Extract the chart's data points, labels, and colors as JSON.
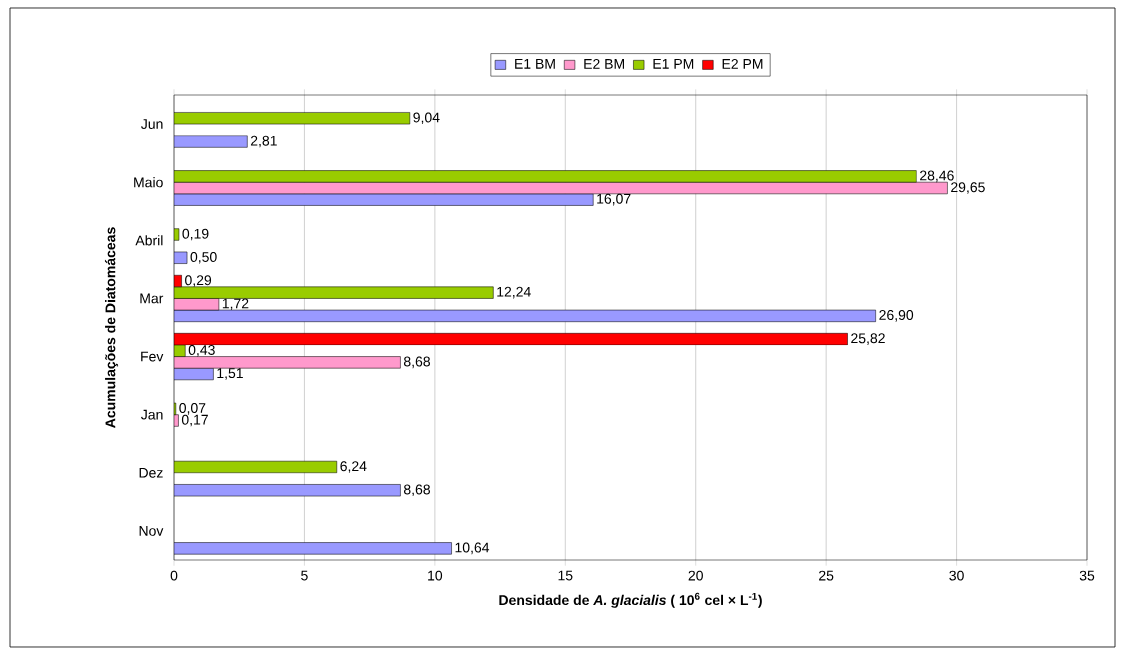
{
  "chart_data": {
    "type": "bar",
    "orientation": "horizontal",
    "xlabel": "Densidade de *A. glacialis*  ( 10$^{6}$ cel × L$^{-1}$)",
    "ylabel": "Acumulações de Diatomáceas",
    "categories": [
      "Jun",
      "Maio",
      "Abril",
      "Mar",
      "Fev",
      "Jan",
      "Dez",
      "Nov"
    ],
    "series": [
      {
        "name": "E1 BM",
        "color": "#9999ff",
        "values": [
          2.81,
          16.07,
          0.5,
          26.9,
          1.51,
          null,
          8.68,
          10.64
        ],
        "value_labels": [
          "2,81",
          "16,07",
          "0,50",
          "26,90",
          "1,51",
          null,
          "8,68",
          "10,64"
        ]
      },
      {
        "name": "E2 BM",
        "color": "#ff99cc",
        "values": [
          null,
          29.65,
          null,
          1.72,
          8.68,
          0.17,
          null,
          null
        ],
        "value_labels": [
          null,
          "29,65",
          null,
          "1,72",
          "8,68",
          "0,17",
          null,
          null
        ]
      },
      {
        "name": "E1 PM",
        "color": "#99cc00",
        "values": [
          9.04,
          28.46,
          0.19,
          12.24,
          0.43,
          0.07,
          6.24,
          null
        ],
        "value_labels": [
          "9,04",
          "28,46",
          "0,19",
          "12,24",
          "0,43",
          "0,07",
          "6,24",
          null
        ]
      },
      {
        "name": "E2 PM",
        "color": "#ff0000",
        "values": [
          null,
          null,
          null,
          0.29,
          25.82,
          null,
          null,
          null
        ],
        "value_labels": [
          null,
          null,
          null,
          "0,29",
          "25,82",
          null,
          null,
          null
        ]
      }
    ],
    "xlim": [
      0,
      35
    ],
    "xticks": [
      0,
      5,
      10,
      15,
      20,
      25,
      30,
      35
    ],
    "grid": "x",
    "legend": "top"
  }
}
